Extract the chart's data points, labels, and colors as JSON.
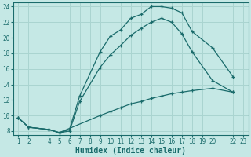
{
  "xlabel": "Humidex (Indice chaleur)",
  "bg_color": "#c5e8e5",
  "grid_color": "#aad4d0",
  "line_color": "#1a6b6b",
  "line1_x": [
    1,
    2,
    4,
    5,
    6,
    7,
    9,
    10,
    11,
    12,
    13,
    14,
    15,
    16,
    17,
    18,
    20,
    22
  ],
  "line1_y": [
    9.7,
    8.5,
    8.2,
    7.8,
    8.2,
    12.5,
    18.2,
    20.2,
    21.0,
    22.5,
    23.0,
    24.0,
    24.0,
    23.8,
    23.2,
    20.8,
    18.7,
    15.0
  ],
  "line2_x": [
    1,
    2,
    4,
    5,
    6,
    7,
    9,
    10,
    11,
    12,
    13,
    14,
    15,
    16,
    17,
    18,
    20,
    22
  ],
  "line2_y": [
    9.7,
    8.5,
    8.2,
    7.8,
    8.0,
    11.8,
    16.2,
    17.8,
    19.0,
    20.3,
    21.2,
    22.0,
    22.5,
    22.0,
    20.5,
    18.2,
    14.5,
    13.0
  ],
  "line3_x": [
    1,
    2,
    4,
    5,
    9,
    10,
    11,
    12,
    13,
    14,
    15,
    16,
    17,
    18,
    20,
    22
  ],
  "line3_y": [
    9.7,
    8.5,
    8.2,
    7.8,
    10.0,
    10.5,
    11.0,
    11.5,
    11.8,
    12.2,
    12.5,
    12.8,
    13.0,
    13.2,
    13.5,
    13.0
  ],
  "xlim": [
    0.5,
    23.5
  ],
  "ylim": [
    7.5,
    24.5
  ],
  "xticks": [
    1,
    2,
    4,
    5,
    6,
    7,
    8,
    9,
    10,
    11,
    12,
    13,
    14,
    15,
    16,
    17,
    18,
    19,
    20,
    22,
    23
  ],
  "yticks": [
    8,
    10,
    12,
    14,
    16,
    18,
    20,
    22,
    24
  ],
  "tick_fontsize": 5.5,
  "xlabel_fontsize": 7.0
}
